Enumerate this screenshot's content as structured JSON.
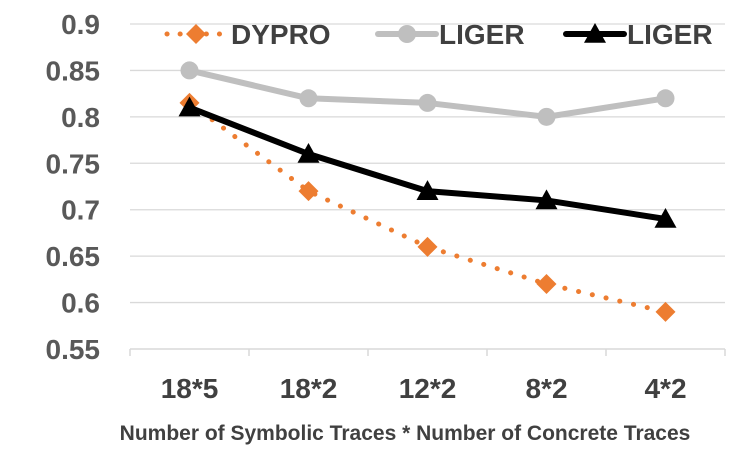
{
  "chart_data": {
    "type": "line",
    "title": "",
    "xlabel": "Number of Symbolic Traces * Number of Concrete Traces",
    "ylabel": "",
    "categories": [
      "18*5",
      "18*2",
      "12*2",
      "8*2",
      "4*2"
    ],
    "ylim": [
      0.55,
      0.9
    ],
    "yticks": [
      0.55,
      0.6,
      0.65,
      0.7,
      0.75,
      0.8,
      0.85,
      0.9
    ],
    "ytick_labels": [
      "0.55",
      "0.6",
      "0.65",
      "0.7",
      "0.75",
      "0.8",
      "0.85",
      "0.9"
    ],
    "grid": true,
    "legend_position": "top",
    "series": [
      {
        "name": "DYPRO",
        "values": [
          0.815,
          0.72,
          0.66,
          0.62,
          0.59
        ],
        "color": "#ED7D31",
        "marker": "diamond",
        "line": "dotted"
      },
      {
        "name": "LIGER",
        "values": [
          0.85,
          0.82,
          0.815,
          0.8,
          0.82
        ],
        "color": "#BFBFBF",
        "marker": "circle",
        "line": "solid"
      },
      {
        "name": "LIGER",
        "values": [
          0.81,
          0.76,
          0.72,
          0.71,
          0.69
        ],
        "color": "#000000",
        "marker": "triangle",
        "line": "solid"
      }
    ]
  }
}
